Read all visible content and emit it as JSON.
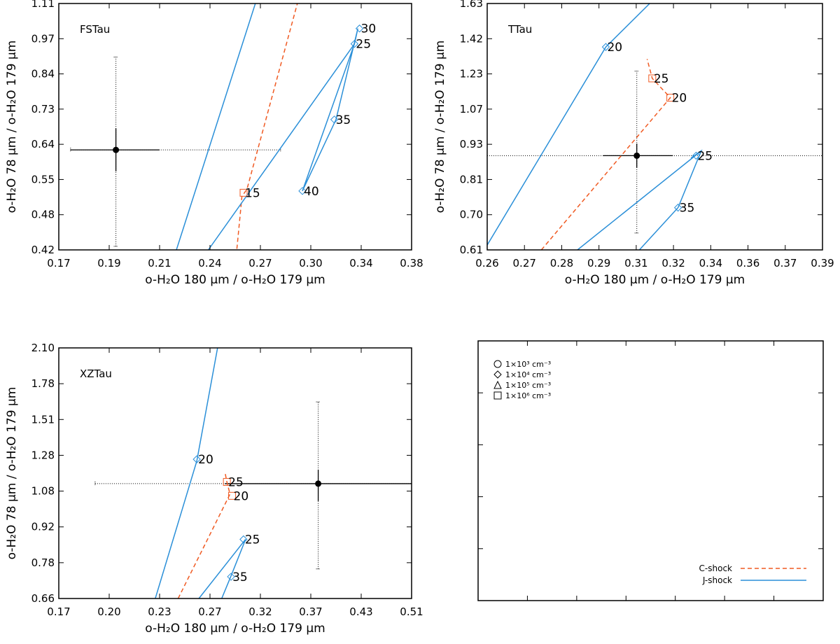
{
  "colors": {
    "c_shock": "#f05a22",
    "j_shock": "#2a8fd8",
    "observed": "#000000"
  },
  "legend": {
    "symbols": [
      {
        "shape": "circle",
        "label": "1×10³ cm⁻³"
      },
      {
        "shape": "diamond",
        "label": "1×10⁴ cm⁻³"
      },
      {
        "shape": "triangle",
        "label": "1×10⁵ cm⁻³"
      },
      {
        "shape": "square",
        "label": "1×10⁶ cm⁻³"
      }
    ],
    "lines": [
      {
        "label": "C-shock",
        "style": "dashed",
        "color": "#f05a22"
      },
      {
        "label": "J-shock",
        "style": "solid",
        "color": "#2a8fd8"
      }
    ]
  },
  "chart_data": [
    {
      "type": "line",
      "title": "FSTau",
      "xlabel": "o-H₂O 180 μm / o-H₂O 179 μm",
      "ylabel": "o-H₂O 78 μm / o-H₂O 179 μm",
      "xlim": [
        0.17,
        0.38
      ],
      "ylim": [
        0.42,
        1.11
      ],
      "xticks": [
        "0.17",
        "0.19",
        "0.21",
        "0.24",
        "0.27",
        "0.30",
        "0.34",
        "0.38"
      ],
      "yticks": [
        "0.42",
        "0.48",
        "0.55",
        "0.64",
        "0.73",
        "0.84",
        "0.97",
        "1.11"
      ],
      "observed": {
        "x": 0.204,
        "y": 0.7,
        "x_err": [
          0.177,
          0.302
        ],
        "y_err": [
          0.43,
          0.96
        ],
        "x_err_solid": [
          0.177,
          0.23
        ],
        "y_err_solid": [
          0.64,
          0.76
        ]
      },
      "series": [
        {
          "name": "C-shock",
          "style": "dashed",
          "points": [
            [
              0.276,
              0.423
            ],
            [
              0.278,
              0.52
            ],
            [
              0.279,
              0.57
            ],
            [
              0.282,
              0.59
            ],
            [
              0.312,
              1.11
            ]
          ]
        },
        {
          "name": "J-shock",
          "style": "solid",
          "points": [
            [
              0.24,
              0.42
            ],
            [
              0.287,
              1.11
            ]
          ]
        },
        {
          "name": "J-shock",
          "style": "solid",
          "points": [
            [
              0.259,
              0.42
            ],
            [
              0.346,
              0.997
            ]
          ]
        },
        {
          "name": "J-shock",
          "style": "solid",
          "points": [
            [
              0.346,
              0.997
            ],
            [
              0.348,
              1.04
            ],
            [
              0.335,
              0.785
            ],
            [
              0.315,
              0.585
            ],
            [
              0.346,
              0.997
            ]
          ]
        }
      ],
      "markers": [
        {
          "label": "30",
          "x": 0.349,
          "y": 1.04,
          "shape": "diamond"
        },
        {
          "label": "25",
          "x": 0.346,
          "y": 0.997,
          "shape": "diamond"
        },
        {
          "label": "35",
          "x": 0.334,
          "y": 0.785,
          "shape": "diamond"
        },
        {
          "label": "40",
          "x": 0.315,
          "y": 0.585,
          "shape": "diamond"
        },
        {
          "label": "15",
          "x": 0.28,
          "y": 0.58,
          "shape": "square"
        }
      ]
    },
    {
      "type": "line",
      "title": "TTau",
      "xlabel": "o-H₂O 180 μm / o-H₂O 179 μm",
      "ylabel": "o-H₂O 78 μm / o-H₂O 179 μm",
      "xlim": [
        0.26,
        0.39
      ],
      "ylim": [
        0.61,
        1.63
      ],
      "xticks": [
        "0.26",
        "0.27",
        "0.28",
        "0.29",
        "0.31",
        "0.32",
        "0.34",
        "0.36",
        "0.37",
        "0.39"
      ],
      "yticks": [
        "0.61",
        "0.70",
        "0.81",
        "0.93",
        "1.07",
        "1.23",
        "1.42",
        "1.63"
      ],
      "observed": {
        "x": 0.318,
        "y": 1.0,
        "x_err": [
          0.26,
          0.39
        ],
        "y_err": [
          0.68,
          1.35
        ],
        "x_err_solid": [
          0.305,
          0.332
        ],
        "y_err_solid": [
          0.95,
          1.05
        ]
      },
      "series": [
        {
          "name": "J-shock",
          "style": "solid",
          "points": [
            [
              0.26,
              0.63
            ],
            [
              0.306,
              1.45
            ],
            [
              0.323,
              1.63
            ]
          ]
        },
        {
          "name": "C-shock",
          "style": "dashed",
          "points": [
            [
              0.281,
              0.61
            ],
            [
              0.331,
              1.24
            ],
            [
              0.324,
              1.32
            ],
            [
              0.322,
              1.4
            ]
          ]
        },
        {
          "name": "J-shock",
          "style": "solid",
          "points": [
            [
              0.295,
              0.61
            ],
            [
              0.343,
              1.02
            ]
          ]
        },
        {
          "name": "J-shock",
          "style": "solid",
          "points": [
            [
              0.319,
              0.61
            ],
            [
              0.334,
              0.785
            ],
            [
              0.343,
              1.02
            ],
            [
              0.339,
              0.99
            ],
            [
              0.343,
              1.02
            ]
          ]
        }
      ],
      "markers": [
        {
          "label": "20",
          "x": 0.306,
          "y": 1.45,
          "shape": "diamond"
        },
        {
          "label": "25",
          "x": 0.324,
          "y": 1.32,
          "shape": "square"
        },
        {
          "label": "20",
          "x": 0.331,
          "y": 1.24,
          "shape": "square"
        },
        {
          "label": "25",
          "x": 0.341,
          "y": 1.0,
          "shape": "diamond"
        },
        {
          "label": "35",
          "x": 0.334,
          "y": 0.785,
          "shape": "diamond"
        }
      ]
    },
    {
      "type": "line",
      "title": "XZTau",
      "xlabel": "o-H₂O 180 μm / o-H₂O 179 μm",
      "ylabel": "o-H₂O 78 μm / o-H₂O 179 μm",
      "xlim": [
        0.17,
        0.51
      ],
      "ylim": [
        0.66,
        2.1
      ],
      "xticks": [
        "0.17",
        "0.20",
        "0.23",
        "0.27",
        "0.32",
        "0.37",
        "0.43",
        "0.51"
      ],
      "yticks": [
        "0.66",
        "0.78",
        "0.92",
        "1.08",
        "1.28",
        "1.51",
        "1.78",
        "2.10"
      ],
      "observed": {
        "x": 0.42,
        "y": 1.32,
        "x_err": [
          0.205,
          0.51
        ],
        "y_err": [
          0.83,
          1.79
        ],
        "x_err_solid": [
          0.33,
          0.51
        ],
        "y_err_solid": [
          1.22,
          1.4
        ]
      },
      "series": [
        {
          "name": "J-shock",
          "style": "solid",
          "points": [
            [
              0.263,
              0.66
            ],
            [
              0.303,
              1.45
            ],
            [
              0.323,
              2.1
            ]
          ]
        },
        {
          "name": "C-shock",
          "style": "dashed",
          "points": [
            [
              0.285,
              0.66
            ],
            [
              0.335,
              1.26
            ],
            [
              0.332,
              1.33
            ],
            [
              0.33,
              1.39
            ]
          ]
        },
        {
          "name": "J-shock",
          "style": "solid",
          "points": [
            [
              0.305,
              0.66
            ],
            [
              0.35,
              1.0
            ]
          ]
        },
        {
          "name": "J-shock",
          "style": "solid",
          "points": [
            [
              0.327,
              0.66
            ],
            [
              0.336,
              0.79
            ],
            [
              0.35,
              1.0
            ],
            [
              0.348,
              0.98
            ],
            [
              0.35,
              1.0
            ]
          ]
        }
      ],
      "markers": [
        {
          "label": "20",
          "x": 0.303,
          "y": 1.46,
          "shape": "diamond"
        },
        {
          "label": "25",
          "x": 0.332,
          "y": 1.33,
          "shape": "square"
        },
        {
          "label": "20",
          "x": 0.337,
          "y": 1.25,
          "shape": "square"
        },
        {
          "label": "25",
          "x": 0.348,
          "y": 1.0,
          "shape": "diamond"
        },
        {
          "label": "35",
          "x": 0.336,
          "y": 0.785,
          "shape": "diamond"
        }
      ]
    }
  ]
}
